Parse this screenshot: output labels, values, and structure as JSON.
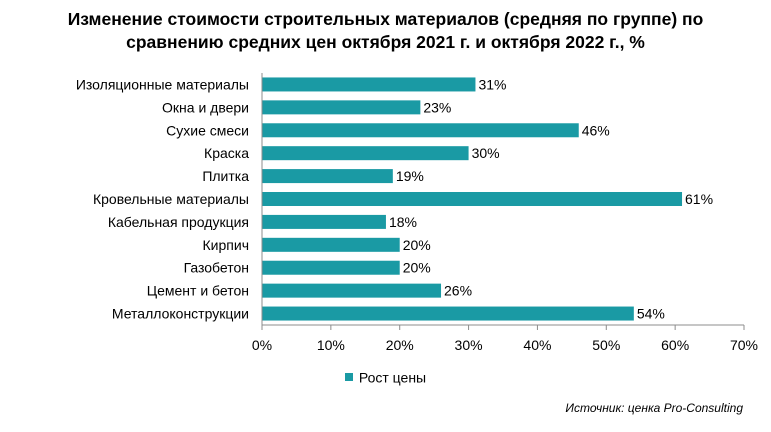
{
  "chart_data": {
    "type": "bar",
    "orientation": "horizontal",
    "title_line1": "Изменение стоимости строительных материалов (средняя по группе) по",
    "title_line2": "сравнению средних цен октября 2021 г. и октября 2022 г., %",
    "categories": [
      "Изоляционные  материалы",
      "Окна и двери",
      "Сухие  смеси",
      "Краска",
      "Плитка",
      "Кровельные материалы",
      "Кабельная продукция",
      "Кирпич",
      "Газобетон",
      "Цемент и бетон",
      "Металлоконструкции"
    ],
    "series": [
      {
        "name": "Рост цены",
        "color": "#1a9aa4",
        "values": [
          31,
          23,
          46,
          30,
          19,
          61,
          18,
          20,
          20,
          26,
          54
        ],
        "labels": [
          "31%",
          "23%",
          "46%",
          "30%",
          "19%",
          "61%",
          "18%",
          "20%",
          "20%",
          "26%",
          "54%"
        ]
      }
    ],
    "xlim": [
      0,
      70
    ],
    "xticks": [
      0,
      10,
      20,
      30,
      40,
      50,
      60,
      70
    ],
    "xtick_labels": [
      "0%",
      "10%",
      "20%",
      "30%",
      "40%",
      "50%",
      "60%",
      "70%"
    ],
    "grid": false,
    "legend_position": "bottom"
  },
  "source": "Источник: ценка Pro-Consulting"
}
